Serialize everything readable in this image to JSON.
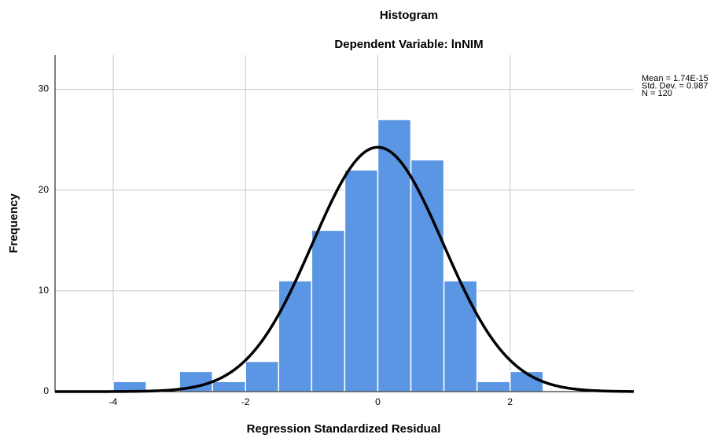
{
  "chart_data": {
    "type": "histogram",
    "title": "Histogram",
    "subtitle": "Dependent Variable: lnNIM",
    "x_label": "Regression Standardized Residual",
    "y_label": "Frequency",
    "bins": [
      -4,
      -3.5,
      -3,
      -2.5,
      -2,
      -1.5,
      -1,
      -0.5,
      0,
      0.5,
      1,
      1.5,
      2,
      2.5
    ],
    "values": [
      1,
      0,
      2,
      1,
      3,
      11,
      16,
      22,
      27,
      23,
      11,
      1,
      2
    ],
    "color": "#5a96e3",
    "curve_color": "#000000",
    "stats": [
      {
        "value": 1.74e-15,
        "label": "Mean = 1.74E-15"
      },
      {
        "value": 0.987,
        "label": "Std. Dev. = 0.987"
      },
      {
        "value": 120,
        "label": "N = 120"
      }
    ],
    "xlim": [
      -4.88,
      3.87
    ],
    "ylim": [
      0,
      33.4
    ],
    "xticks": [
      -4,
      -2,
      0,
      2
    ],
    "yticks": [
      0,
      10,
      20,
      30
    ],
    "grid": true
  }
}
